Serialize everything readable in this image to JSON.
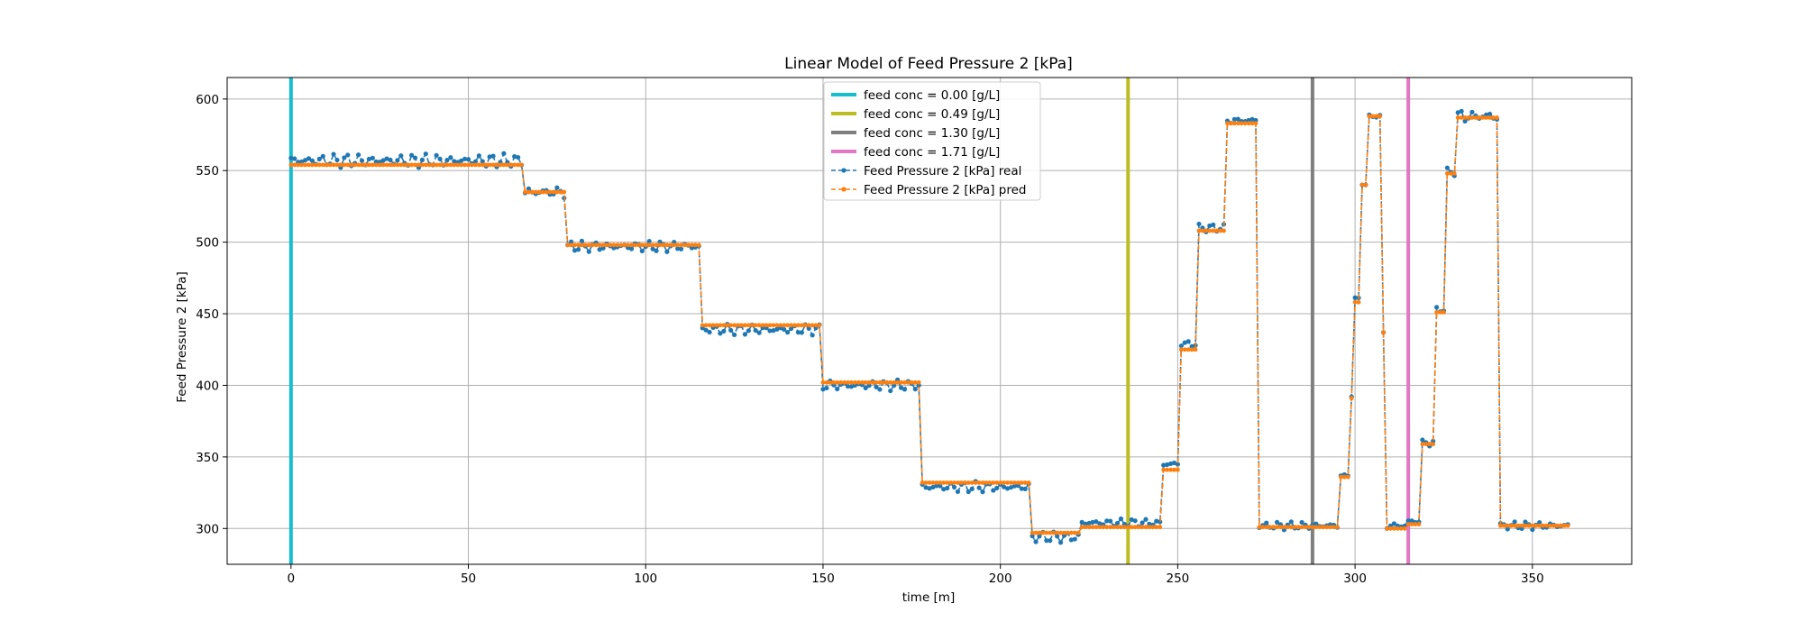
{
  "chart_data": {
    "type": "line",
    "title": "Linear Model of Feed Pressure 2 [kPa]",
    "xlabel": "time [m]",
    "ylabel": "Feed Pressure 2 [kPa]",
    "xlim": [
      -18,
      378
    ],
    "ylim": [
      275,
      615
    ],
    "xticks": [
      0,
      50,
      100,
      150,
      200,
      250,
      300,
      350
    ],
    "yticks": [
      300,
      350,
      400,
      450,
      500,
      550,
      600
    ],
    "grid": true,
    "legend_position": "upper center",
    "vlines": [
      {
        "label": "feed conc = 0.00 [g/L]",
        "x": 0,
        "color": "#17becf"
      },
      {
        "label": "feed conc = 0.49 [g/L]",
        "x": 236,
        "color": "#bcbd22"
      },
      {
        "label": "feed conc = 1.30 [g/L]",
        "x": 288,
        "color": "#7f7f7f"
      },
      {
        "label": "feed conc = 1.71 [g/L]",
        "x": 315,
        "color": "#e377c2"
      }
    ],
    "segments": [
      {
        "start": 0,
        "end": 65,
        "pred": 554,
        "real": 557,
        "amp": 5
      },
      {
        "start": 66,
        "end": 77,
        "pred": 535,
        "real": 535,
        "amp": 5
      },
      {
        "start": 78,
        "end": 115,
        "pred": 498,
        "real": 497,
        "amp": 4
      },
      {
        "start": 116,
        "end": 149,
        "pred": 442,
        "real": 439,
        "amp": 4
      },
      {
        "start": 150,
        "end": 177,
        "pred": 402,
        "real": 400,
        "amp": 4
      },
      {
        "start": 178,
        "end": 208,
        "pred": 332,
        "real": 329,
        "amp": 4
      },
      {
        "start": 209,
        "end": 222,
        "pred": 297,
        "real": 294,
        "amp": 4
      },
      {
        "start": 223,
        "end": 245,
        "pred": 301,
        "real": 304,
        "amp": 3
      },
      {
        "start": 246,
        "end": 250,
        "pred": 341,
        "real": 345,
        "amp": 3
      },
      {
        "start": 251,
        "end": 255,
        "pred": 425,
        "real": 429,
        "amp": 3
      },
      {
        "start": 256,
        "end": 263,
        "pred": 508,
        "real": 510,
        "amp": 3
      },
      {
        "start": 264,
        "end": 272,
        "pred": 583,
        "real": 585,
        "amp": 3
      },
      {
        "start": 273,
        "end": 295,
        "pred": 301,
        "real": 302,
        "amp": 3
      },
      {
        "start": 296,
        "end": 298,
        "pred": 336,
        "real": 337,
        "amp": 1
      },
      {
        "start": 299,
        "end": 299,
        "pred": 391,
        "real": 392,
        "amp": 0
      },
      {
        "start": 300,
        "end": 301,
        "pred": 458,
        "real": 460,
        "amp": 2
      },
      {
        "start": 302,
        "end": 303,
        "pred": 540,
        "real": 540,
        "amp": 0
      },
      {
        "start": 304,
        "end": 307,
        "pred": 588,
        "real": 588,
        "amp": 1
      },
      {
        "start": 308,
        "end": 308,
        "pred": 437,
        "real": 437,
        "amp": 0
      },
      {
        "start": 309,
        "end": 314,
        "pred": 300,
        "real": 302,
        "amp": 3
      },
      {
        "start": 315,
        "end": 318,
        "pred": 303,
        "real": 305,
        "amp": 2
      },
      {
        "start": 319,
        "end": 322,
        "pred": 359,
        "real": 360,
        "amp": 3
      },
      {
        "start": 323,
        "end": 325,
        "pred": 451,
        "real": 453,
        "amp": 2
      },
      {
        "start": 326,
        "end": 328,
        "pred": 548,
        "real": 549,
        "amp": 3
      },
      {
        "start": 329,
        "end": 340,
        "pred": 587,
        "real": 588,
        "amp": 6
      },
      {
        "start": 341,
        "end": 360,
        "pred": 302,
        "real": 302,
        "amp": 3
      }
    ],
    "series": [
      {
        "name": "Feed Pressure 2 [kPa] real",
        "color": "#1f77b4"
      },
      {
        "name": "Feed Pressure 2 [kPa] pred",
        "color": "#ff7f0e"
      }
    ]
  }
}
